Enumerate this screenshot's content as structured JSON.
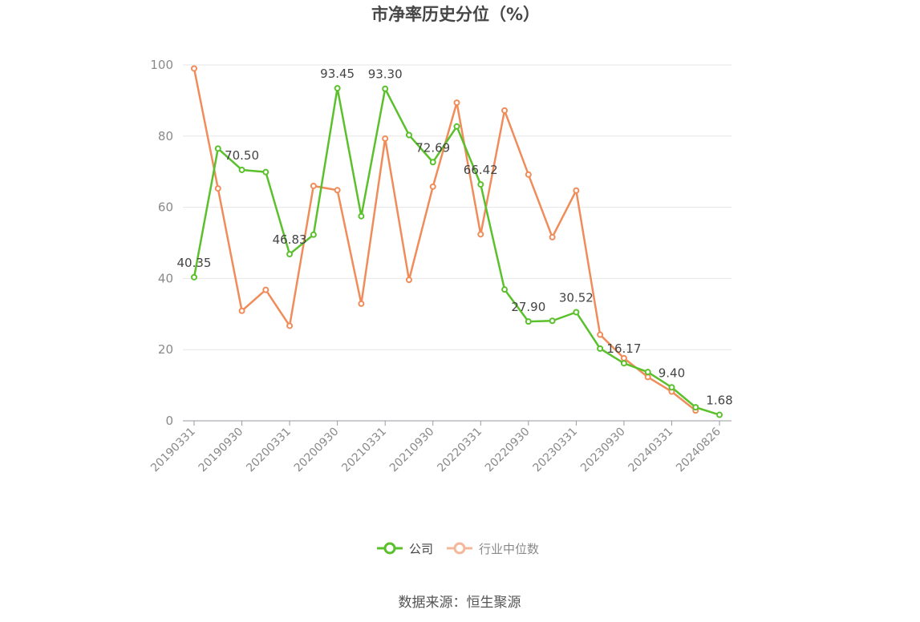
{
  "chart_data": {
    "type": "line",
    "title": "市净率历史分位（%）",
    "xlabel": "",
    "ylabel": "",
    "ylim": [
      0,
      100
    ],
    "yticks": [
      0,
      20,
      40,
      60,
      80,
      100
    ],
    "grid": true,
    "legend_position": "bottom-center",
    "x": [
      "20190331",
      "20190630",
      "20190930",
      "20191231",
      "20200331",
      "20200630",
      "20200930",
      "20201231",
      "20210331",
      "20210630",
      "20210930",
      "20211231",
      "20220331",
      "20220630",
      "20220930",
      "20221231",
      "20230331",
      "20230630",
      "20230930",
      "20231231",
      "20240331",
      "20240630",
      "20240826"
    ],
    "xtick_labels": [
      "20190331",
      "20190930",
      "20200331",
      "20200930",
      "20210331",
      "20210930",
      "20220331",
      "20220930",
      "20230331",
      "20230930",
      "20240331",
      "20240826"
    ],
    "xtick_indices": [
      0,
      2,
      4,
      6,
      8,
      10,
      12,
      14,
      16,
      18,
      20,
      22
    ],
    "series": [
      {
        "name": "公司",
        "color": "#5ac02c",
        "values": [
          40.35,
          76.5,
          70.5,
          69.9,
          46.83,
          52.3,
          93.45,
          57.5,
          93.3,
          80.3,
          72.69,
          82.7,
          66.42,
          36.9,
          27.9,
          28.1,
          30.52,
          20.3,
          16.17,
          13.7,
          9.4,
          3.8,
          1.68
        ],
        "labels": {
          "0": "40.35",
          "2": "70.50",
          "4": "46.83",
          "6": "93.45",
          "8": "93.30",
          "10": "72.69",
          "12": "66.42",
          "14": "27.90",
          "16": "30.52",
          "18": "16.17",
          "20": "9.40",
          "22": "1.68"
        }
      },
      {
        "name": "行业中位数",
        "color": "#f08c5a",
        "values": [
          99.0,
          65.3,
          30.9,
          36.8,
          26.7,
          66.0,
          64.8,
          32.9,
          79.3,
          39.6,
          65.8,
          89.4,
          52.4,
          87.2,
          69.2,
          51.6,
          64.7,
          24.2,
          17.6,
          12.3,
          8.2,
          2.9,
          null
        ]
      }
    ]
  },
  "legend": {
    "items": [
      {
        "name": "公司",
        "color": "#5ac02c",
        "text_color": "#464646"
      },
      {
        "name": "行业中位数",
        "color": "#f5b79a",
        "text_color": "#8a8a8a"
      }
    ]
  },
  "footer": {
    "source": "数据来源：恒生聚源"
  }
}
